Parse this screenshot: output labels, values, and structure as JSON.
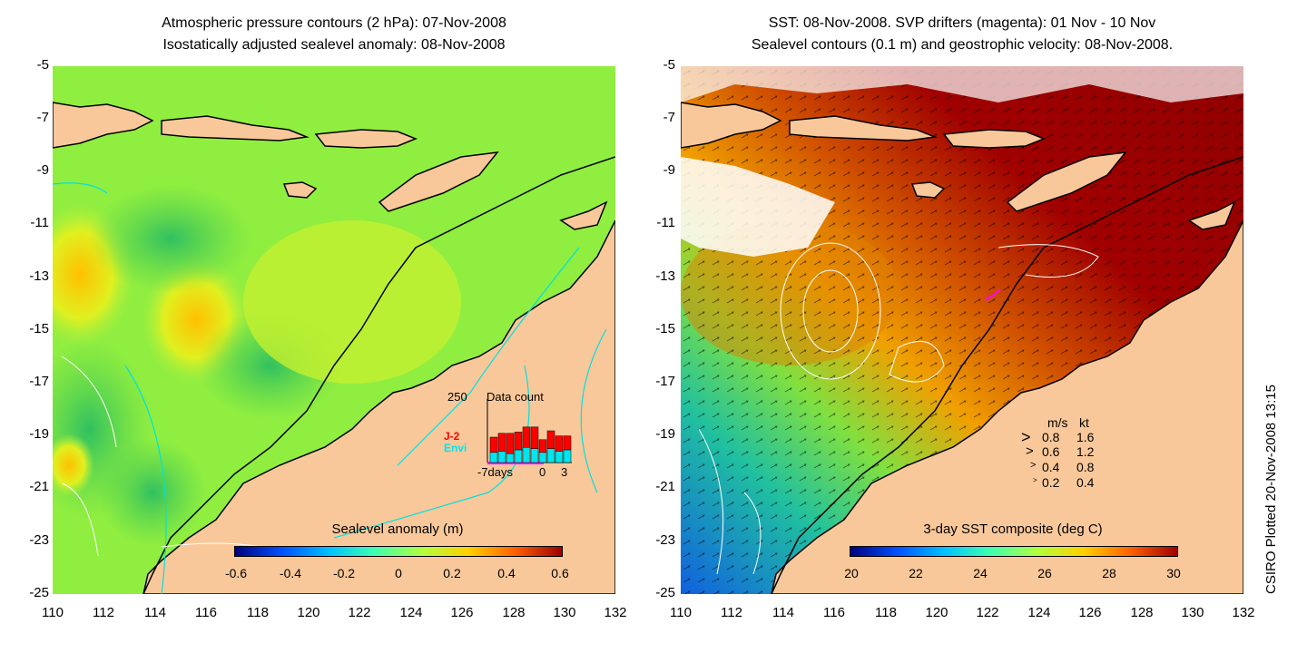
{
  "left_panel": {
    "title_line1": "Atmospheric pressure contours (2 hPa): 07-Nov-2008",
    "title_line2": "Isostatically adjusted sealevel anomaly: 08-Nov-2008",
    "colorbar": {
      "title": "Sealevel anomaly (m)",
      "ticks": [
        "-0.6",
        "-0.4",
        "-0.2",
        "0",
        "0.2",
        "0.4",
        "0.6"
      ],
      "colors": [
        "#00007f",
        "#0050ff",
        "#00c0ff",
        "#40ffb0",
        "#b0ff40",
        "#ffd000",
        "#ff6000",
        "#9f0000"
      ]
    },
    "inset": {
      "count_label": "250",
      "title": "Data count",
      "j2_label": "J-2",
      "envi_label": "Envi",
      "axis_labels": [
        "-7days",
        "0",
        "3"
      ],
      "j2_color": "#ff0000",
      "envi_color": "#00e5ee",
      "bars": [
        {
          "envi": 40,
          "j2": 60
        },
        {
          "envi": 45,
          "j2": 70
        },
        {
          "envi": 35,
          "j2": 80
        },
        {
          "envi": 50,
          "j2": 70
        },
        {
          "envi": 60,
          "j2": 80
        },
        {
          "envi": 55,
          "j2": 85
        },
        {
          "envi": 40,
          "j2": 50
        },
        {
          "envi": 55,
          "j2": 70
        },
        {
          "envi": 45,
          "j2": 60
        },
        {
          "envi": 50,
          "j2": 55
        }
      ]
    }
  },
  "right_panel": {
    "title_line1": "SST: 08-Nov-2008. SVP drifters (magenta): 01 Nov - 10 Nov",
    "title_line2": "Sealevel contours (0.1 m) and geostrophic velocity: 08-Nov-2008.",
    "colorbar": {
      "title": "3-day SST composite (deg C)",
      "ticks": [
        "20",
        "22",
        "24",
        "26",
        "28",
        "30"
      ],
      "colors": [
        "#00007f",
        "#0050ff",
        "#00c0ff",
        "#40ffb0",
        "#b0ff40",
        "#ffd000",
        "#ff6000",
        "#9f0000"
      ]
    },
    "velocity_legend": {
      "header_ms": "m/s",
      "header_kt": "kt",
      "rows": [
        {
          "ms": "0.8",
          "kt": "1.6"
        },
        {
          "ms": "0.6",
          "kt": "1.2"
        },
        {
          "ms": "0.4",
          "kt": "0.8"
        },
        {
          "ms": "0.2",
          "kt": "0.4"
        }
      ]
    }
  },
  "axes": {
    "y_ticks": [
      "-5",
      "-7",
      "-9",
      "-11",
      "-13",
      "-15",
      "-17",
      "-19",
      "-21",
      "-23",
      "-25"
    ],
    "x_ticks": [
      "110",
      "112",
      "114",
      "116",
      "118",
      "120",
      "122",
      "124",
      "126",
      "128",
      "130",
      "132"
    ]
  },
  "credit": "CSIRO Plotted 20-Nov-2008 13:15",
  "colors": {
    "land": "#f9c89a",
    "ocean_left": "#90ee40",
    "ocean_right": "#a00000",
    "contour_cyan": "#00e0e0"
  }
}
